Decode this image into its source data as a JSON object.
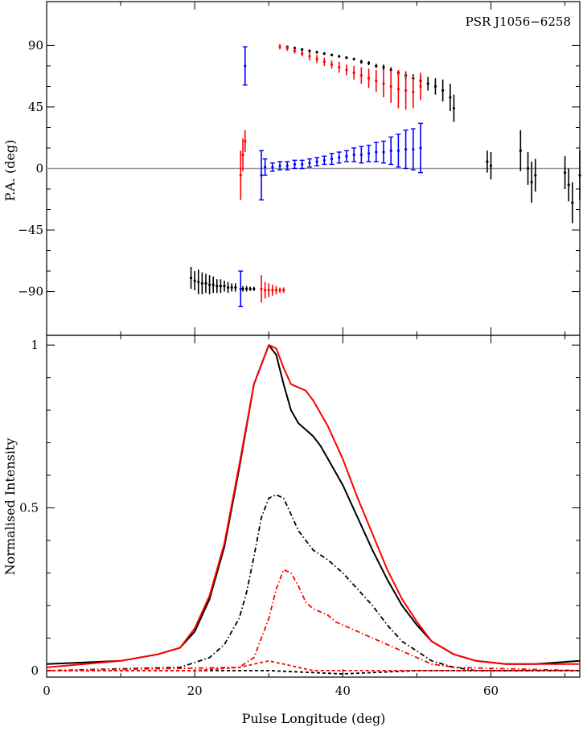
{
  "chart_data": [
    {
      "type": "scatter",
      "title": "PSR J1056−6258",
      "ylabel": "P.A.  (deg)",
      "xlim": [
        0,
        72
      ],
      "ylim": [
        -122,
        122
      ],
      "yticks": [
        -90,
        -45,
        0,
        45,
        90
      ],
      "ytick_labels": [
        "−90",
        "−45",
        "0",
        "45",
        "90"
      ],
      "reference_line_y": 0,
      "grid": false,
      "series": [
        {
          "color": "#000000",
          "errorbar": true,
          "points": [
            [
              19.5,
              -80,
              8
            ],
            [
              20.0,
              -82,
              7
            ],
            [
              20.5,
              -83,
              9
            ],
            [
              21.0,
              -84,
              8
            ],
            [
              21.5,
              -84,
              7
            ],
            [
              22.0,
              -85,
              7
            ],
            [
              22.5,
              -85,
              6
            ],
            [
              23.0,
              -86,
              5
            ],
            [
              23.5,
              -86,
              5
            ],
            [
              24.0,
              -86,
              4
            ],
            [
              24.5,
              -87,
              4
            ],
            [
              25.0,
              -87,
              3
            ],
            [
              25.5,
              -87,
              3
            ],
            [
              26.5,
              -88,
              2
            ],
            [
              27.0,
              -88,
              2
            ],
            [
              27.5,
              -88,
              1.5
            ],
            [
              28.0,
              -88,
              1.5
            ],
            [
              32.5,
              89,
              1
            ],
            [
              33.5,
              88,
              1
            ],
            [
              34.5,
              87,
              1
            ],
            [
              35.5,
              86,
              1
            ],
            [
              36.5,
              85,
              1
            ],
            [
              37.5,
              84,
              1
            ],
            [
              38.5,
              83,
              1
            ],
            [
              39.5,
              82,
              1
            ],
            [
              40.5,
              81,
              1
            ],
            [
              41.5,
              80,
              1
            ],
            [
              42.5,
              78,
              1.5
            ],
            [
              43.5,
              77,
              1.5
            ],
            [
              44.5,
              75,
              1.5
            ],
            [
              45.5,
              74,
              2
            ],
            [
              46.5,
              72,
              2
            ],
            [
              47.5,
              70,
              2
            ],
            [
              48.5,
              68,
              3
            ],
            [
              49.5,
              66,
              3
            ],
            [
              50.5,
              64,
              4
            ],
            [
              51.5,
              62,
              5
            ],
            [
              52.5,
              60,
              6
            ],
            [
              53.5,
              57,
              8
            ],
            [
              54.5,
              52,
              10
            ],
            [
              55.0,
              44,
              10
            ],
            [
              59.5,
              5,
              8
            ],
            [
              60.0,
              2,
              10
            ],
            [
              64.0,
              13,
              15
            ],
            [
              65.0,
              0,
              12
            ],
            [
              65.5,
              -10,
              15
            ],
            [
              66.0,
              -5,
              12
            ],
            [
              70.0,
              -3,
              12
            ],
            [
              70.5,
              -12,
              12
            ],
            [
              71.0,
              -25,
              15
            ],
            [
              72.0,
              -5,
              18
            ]
          ]
        },
        {
          "color": "#ff0000",
          "errorbar": true,
          "points": [
            [
              26.2,
              -5,
              18
            ],
            [
              26.5,
              10,
              12
            ],
            [
              26.8,
              20,
              8
            ],
            [
              29.0,
              -88,
              10
            ],
            [
              29.5,
              -89,
              6
            ],
            [
              30.0,
              -89,
              5
            ],
            [
              30.5,
              -89,
              4
            ],
            [
              31.0,
              -89,
              3
            ],
            [
              31.5,
              -89,
              2
            ],
            [
              32.0,
              -89,
              2
            ],
            [
              31.5,
              89,
              2
            ],
            [
              32.5,
              88,
              2
            ],
            [
              33.5,
              86,
              2
            ],
            [
              34.5,
              84,
              2
            ],
            [
              35.5,
              82,
              3
            ],
            [
              36.5,
              80,
              3
            ],
            [
              37.5,
              78,
              3
            ],
            [
              38.5,
              76,
              3
            ],
            [
              39.5,
              74,
              4
            ],
            [
              40.5,
              72,
              4
            ],
            [
              41.5,
              70,
              5
            ],
            [
              42.5,
              68,
              6
            ],
            [
              43.5,
              66,
              7
            ],
            [
              44.5,
              64,
              8
            ],
            [
              45.5,
              62,
              10
            ],
            [
              46.5,
              60,
              12
            ],
            [
              47.5,
              58,
              14
            ],
            [
              48.5,
              57,
              14
            ],
            [
              49.5,
              56,
              12
            ],
            [
              50.5,
              60,
              10
            ]
          ]
        },
        {
          "color": "#0000ff",
          "errorbar": true,
          "points": [
            [
              26.8,
              75,
              14
            ],
            [
              29.0,
              -5,
              18
            ],
            [
              29.5,
              1,
              6
            ],
            [
              30.5,
              1,
              3
            ],
            [
              31.5,
              2,
              3
            ],
            [
              32.5,
              2,
              3
            ],
            [
              33.5,
              3,
              3
            ],
            [
              34.5,
              3,
              3
            ],
            [
              35.5,
              4,
              3
            ],
            [
              36.5,
              5,
              3
            ],
            [
              37.5,
              6,
              3
            ],
            [
              38.5,
              7,
              4
            ],
            [
              39.5,
              8,
              4
            ],
            [
              40.5,
              9,
              4
            ],
            [
              41.5,
              10,
              5
            ],
            [
              42.5,
              10,
              6
            ],
            [
              43.5,
              11,
              6
            ],
            [
              44.5,
              12,
              7
            ],
            [
              45.5,
              12,
              8
            ],
            [
              46.5,
              13,
              10
            ],
            [
              47.5,
              13,
              12
            ],
            [
              48.5,
              14,
              14
            ],
            [
              49.5,
              14,
              15
            ],
            [
              50.5,
              15,
              18
            ],
            [
              26.2,
              -88,
              13
            ]
          ]
        }
      ]
    },
    {
      "type": "line",
      "xlabel": "Pulse Longitude (deg)",
      "ylabel": "Normalised Intensity",
      "xlim": [
        0,
        72
      ],
      "ylim": [
        -0.02,
        1.03
      ],
      "xticks": [
        0,
        20,
        40,
        60
      ],
      "xtick_labels": [
        "0",
        "20",
        "40",
        "60"
      ],
      "yticks": [
        0,
        0.5,
        1
      ],
      "ytick_labels": [
        "0",
        "0.5",
        "1"
      ],
      "grid": false,
      "series": [
        {
          "color": "#000000",
          "dash": "solid",
          "x": [
            0,
            10,
            15,
            18,
            20,
            22,
            24,
            26,
            28,
            30,
            31,
            32,
            33,
            34,
            35,
            36,
            37,
            38,
            39,
            40,
            42,
            44,
            46,
            48,
            50,
            52,
            55,
            58,
            62,
            66,
            72
          ],
          "y": [
            0.02,
            0.03,
            0.05,
            0.07,
            0.12,
            0.22,
            0.38,
            0.62,
            0.88,
            1.0,
            0.97,
            0.88,
            0.8,
            0.76,
            0.74,
            0.72,
            0.69,
            0.65,
            0.61,
            0.57,
            0.47,
            0.37,
            0.28,
            0.2,
            0.14,
            0.09,
            0.05,
            0.03,
            0.02,
            0.02,
            0.03
          ]
        },
        {
          "color": "#ff0000",
          "dash": "solid",
          "x": [
            0,
            10,
            15,
            18,
            20,
            22,
            24,
            26,
            28,
            30,
            31,
            32,
            33,
            34,
            35,
            36,
            37,
            38,
            39,
            40,
            42,
            44,
            46,
            48,
            50,
            52,
            55,
            58,
            62,
            66,
            72
          ],
          "y": [
            0.01,
            0.03,
            0.05,
            0.07,
            0.13,
            0.23,
            0.39,
            0.63,
            0.88,
            1.0,
            0.99,
            0.93,
            0.88,
            0.87,
            0.86,
            0.83,
            0.79,
            0.75,
            0.7,
            0.65,
            0.53,
            0.42,
            0.31,
            0.22,
            0.15,
            0.09,
            0.05,
            0.03,
            0.02,
            0.02,
            0.02
          ]
        },
        {
          "color": "#000000",
          "dash": "dashdot",
          "x": [
            0,
            18,
            22,
            24,
            26,
            27,
            28,
            29,
            30,
            31,
            32,
            33,
            34,
            35,
            36,
            38,
            40,
            42,
            44,
            46,
            48,
            50,
            52,
            55,
            58,
            72
          ],
          "y": [
            0.0,
            0.01,
            0.04,
            0.08,
            0.16,
            0.24,
            0.35,
            0.47,
            0.53,
            0.54,
            0.53,
            0.48,
            0.43,
            0.4,
            0.37,
            0.34,
            0.3,
            0.25,
            0.2,
            0.14,
            0.09,
            0.06,
            0.03,
            0.01,
            0.0,
            0.0
          ]
        },
        {
          "color": "#ff0000",
          "dash": "dashdot",
          "x": [
            0,
            26,
            28,
            30,
            31,
            32,
            33,
            34,
            35,
            36,
            37,
            38,
            39,
            40,
            42,
            44,
            46,
            48,
            50,
            52,
            55,
            72
          ],
          "y": [
            0.0,
            0.01,
            0.04,
            0.16,
            0.25,
            0.31,
            0.3,
            0.26,
            0.21,
            0.19,
            0.18,
            0.17,
            0.15,
            0.14,
            0.12,
            0.1,
            0.08,
            0.06,
            0.04,
            0.02,
            0.01,
            0.0
          ]
        },
        {
          "color": "#000000",
          "dash": "dashed",
          "x": [
            0,
            20,
            30,
            40,
            50,
            60,
            72
          ],
          "y": [
            0.0,
            0.0,
            0.0,
            -0.01,
            0.0,
            0.0,
            0.0
          ]
        },
        {
          "color": "#ff0000",
          "dash": "dashed",
          "x": [
            0,
            20,
            26,
            28,
            30,
            32,
            34,
            36,
            40,
            48,
            72
          ],
          "y": [
            0.0,
            0.0,
            0.01,
            0.02,
            0.03,
            0.02,
            0.01,
            0.0,
            0.0,
            0.0,
            0.0
          ]
        }
      ]
    }
  ]
}
